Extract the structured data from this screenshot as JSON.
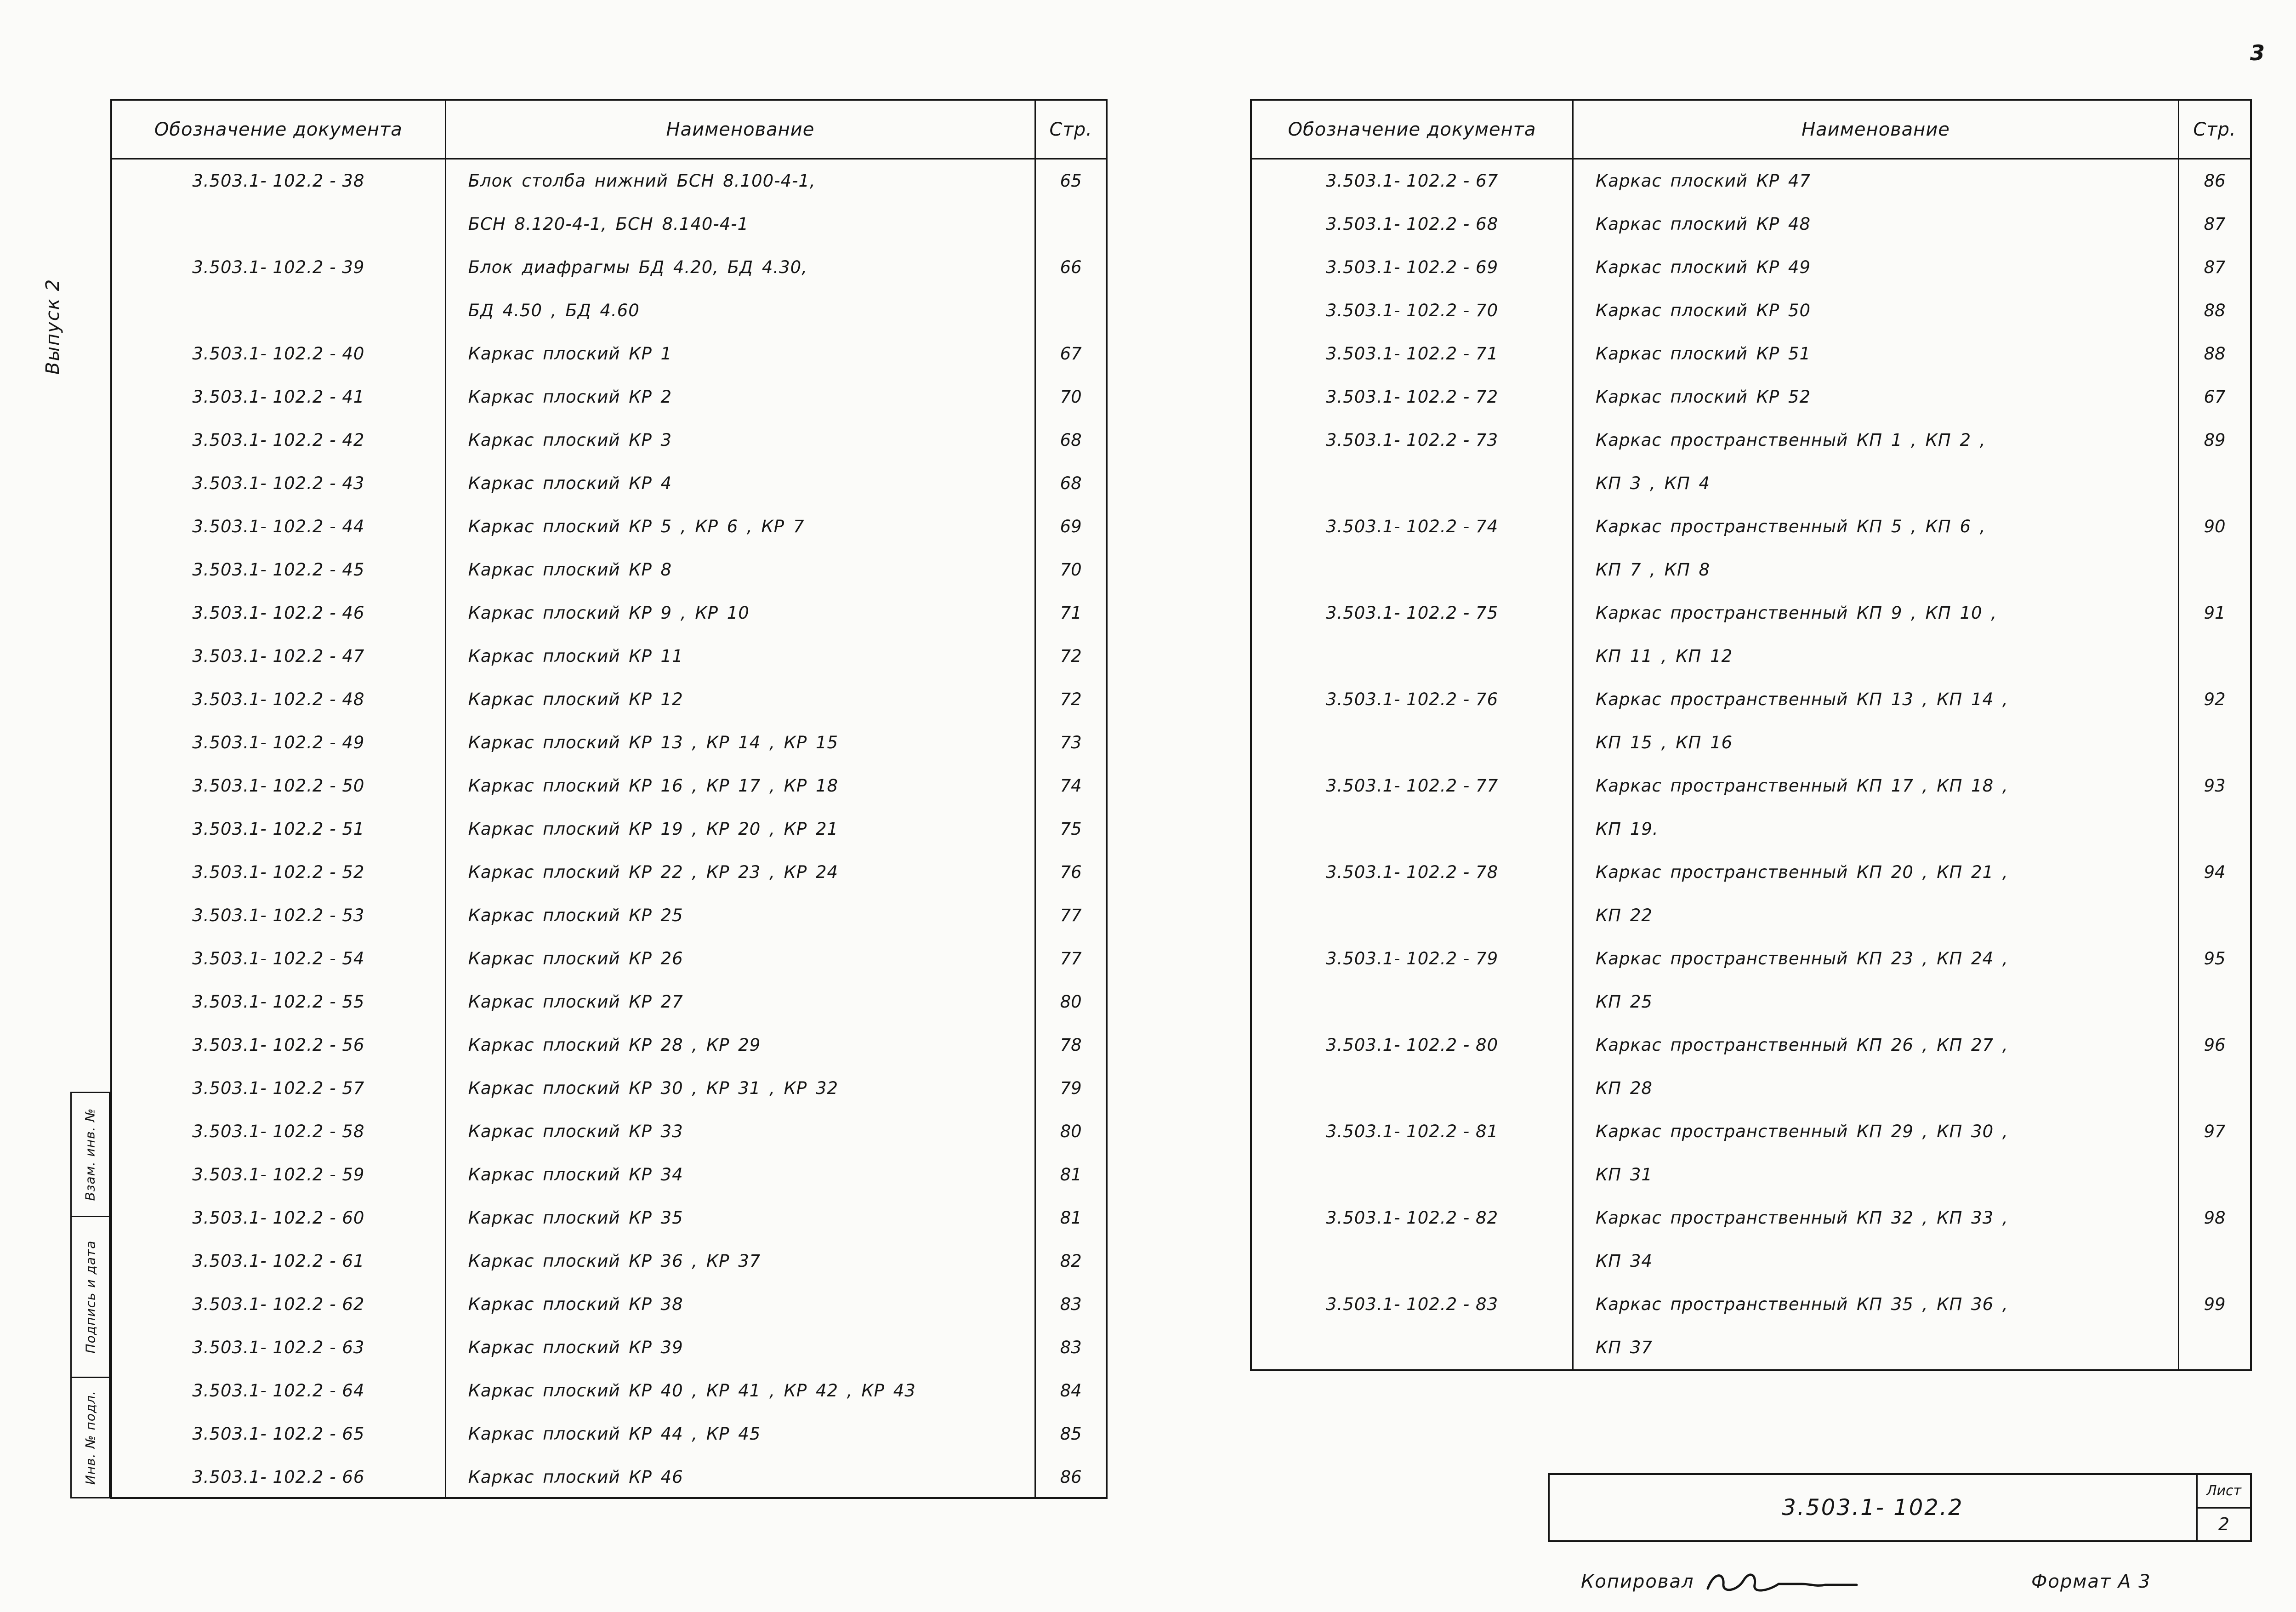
{
  "page": {
    "number": "3",
    "doc_code": "3.503.1- 102.2",
    "sheet_label": "Лист",
    "sheet_number": "2",
    "copied_label": "Копировал",
    "format_label": "Формат А 3"
  },
  "margin": {
    "issue": "Выпуск 2",
    "stamps": [
      "Взам. инв. №",
      "Подпись и дата",
      "Инв. № подл."
    ]
  },
  "tables": [
    {
      "headers": {
        "designation": "Обозначение документа",
        "name": "Наименование",
        "page": "Стр."
      },
      "rows": [
        {
          "designation": "3.503.1- 102.2 - 38",
          "name_lines": [
            "Блок  столба  нижний  БСН 8.100-4-1,",
            "БСН 8.120-4-1,   БСН 8.140-4-1"
          ],
          "page": "65"
        },
        {
          "designation": "3.503.1- 102.2 - 39",
          "name_lines": [
            "Блок  диафрагмы  БД 4.20,  БД 4.30,",
            "БД 4.50 ,  БД 4.60"
          ],
          "page": "66"
        },
        {
          "designation": "3.503.1- 102.2 - 40",
          "name_lines": [
            "Каркас   плоский   КР 1"
          ],
          "page": "67"
        },
        {
          "designation": "3.503.1- 102.2 - 41",
          "name_lines": [
            "Каркас  плоский   КР 2"
          ],
          "page": "70"
        },
        {
          "designation": "3.503.1- 102.2 - 42",
          "name_lines": [
            "Каркас   плоский   КР 3"
          ],
          "page": "68"
        },
        {
          "designation": "3.503.1- 102.2 - 43",
          "name_lines": [
            "Каркас   плоский   КР 4"
          ],
          "page": "68"
        },
        {
          "designation": "3.503.1- 102.2 - 44",
          "name_lines": [
            "Каркас  плоский  КР 5 ,  КР 6 ,  КР 7"
          ],
          "page": "69"
        },
        {
          "designation": "3.503.1- 102.2 - 45",
          "name_lines": [
            "Каркас  плоский  КР 8"
          ],
          "page": "70"
        },
        {
          "designation": "3.503.1- 102.2 - 46",
          "name_lines": [
            "Каркас   плоский  КР 9 ,  КР 10"
          ],
          "page": "71"
        },
        {
          "designation": "3.503.1- 102.2 - 47",
          "name_lines": [
            "Каркас  плоский  КР 11"
          ],
          "page": "72"
        },
        {
          "designation": "3.503.1- 102.2 - 48",
          "name_lines": [
            "Каркас  плоский  КР 12"
          ],
          "page": "72"
        },
        {
          "designation": "3.503.1- 102.2 - 49",
          "name_lines": [
            "Каркас  плоский  КР 13 ,  КР 14 ,  КР 15"
          ],
          "page": "73"
        },
        {
          "designation": "3.503.1- 102.2 - 50",
          "name_lines": [
            "Каркас  плоский  КР 16 ,  КР 17 ,  КР 18"
          ],
          "page": "74"
        },
        {
          "designation": "3.503.1- 102.2 - 51",
          "name_lines": [
            "Каркас плоский  КР 19 ,  КР 20 ,  КР 21"
          ],
          "page": "75"
        },
        {
          "designation": "3.503.1- 102.2 - 52",
          "name_lines": [
            "Каркас  плоский  КР 22 ,  КР 23 ,  КР 24"
          ],
          "page": "76"
        },
        {
          "designation": "3.503.1- 102.2 - 53",
          "name_lines": [
            "Каркас  плоский   КР 25"
          ],
          "page": "77"
        },
        {
          "designation": "3.503.1- 102.2 - 54",
          "name_lines": [
            "Каркас  плоский   КР 26"
          ],
          "page": "77"
        },
        {
          "designation": "3.503.1- 102.2 - 55",
          "name_lines": [
            "Каркас  плоский   КР 27"
          ],
          "page": "80"
        },
        {
          "designation": "3.503.1- 102.2 - 56",
          "name_lines": [
            "Каркас  плоский   КР 28 ,  КР 29"
          ],
          "page": "78"
        },
        {
          "designation": "3.503.1- 102.2 - 57",
          "name_lines": [
            "Каркас  плоский  КР 30 ,  КР 31 ,  КР 32"
          ],
          "page": "79"
        },
        {
          "designation": "3.503.1- 102.2 - 58",
          "name_lines": [
            "Каркас  плоский   КР 33"
          ],
          "page": "80"
        },
        {
          "designation": "3.503.1- 102.2 - 59",
          "name_lines": [
            "Каркас  плоский   КР 34"
          ],
          "page": "81"
        },
        {
          "designation": "3.503.1- 102.2 - 60",
          "name_lines": [
            "Каркас  плоский   КР 35"
          ],
          "page": "81"
        },
        {
          "designation": "3.503.1- 102.2 - 61",
          "name_lines": [
            "Каркас  плоский   КР 36 ,  КР 37"
          ],
          "page": "82"
        },
        {
          "designation": "3.503.1- 102.2 - 62",
          "name_lines": [
            "Каркас  плоский   КР 38"
          ],
          "page": "83"
        },
        {
          "designation": "3.503.1- 102.2 - 63",
          "name_lines": [
            "Каркас  плоский   КР 39"
          ],
          "page": "83"
        },
        {
          "designation": "3.503.1- 102.2 - 64",
          "name_lines": [
            "Каркас  плоский  КР 40 , КР 41 ,  КР 42 , КР 43"
          ],
          "page": "84"
        },
        {
          "designation": "3.503.1- 102.2 - 65",
          "name_lines": [
            "Каркас  плоский   КР 44 ,  КР 45"
          ],
          "page": "85"
        },
        {
          "designation": "3.503.1- 102.2 - 66",
          "name_lines": [
            "Каркас  плоский   КР 46"
          ],
          "page": "86"
        }
      ]
    },
    {
      "headers": {
        "designation": "Обозначение документа",
        "name": "Наименование",
        "page": "Стр."
      },
      "rows": [
        {
          "designation": "3.503.1- 102.2 - 67",
          "name_lines": [
            "Каркас   плоский   КР 47"
          ],
          "page": "86"
        },
        {
          "designation": "3.503.1- 102.2 - 68",
          "name_lines": [
            "Каркас   плоский   КР 48"
          ],
          "page": "87"
        },
        {
          "designation": "3.503.1- 102.2 - 69",
          "name_lines": [
            "Каркас   плоский   КР 49"
          ],
          "page": "87"
        },
        {
          "designation": "3.503.1- 102.2 - 70",
          "name_lines": [
            "Каркас   плоский   КР 50"
          ],
          "page": "88"
        },
        {
          "designation": "3.503.1- 102.2 - 71",
          "name_lines": [
            "Каркас   плоский   КР 51"
          ],
          "page": "88"
        },
        {
          "designation": "3.503.1- 102.2 - 72",
          "name_lines": [
            "Каркас   плоский   КР 52"
          ],
          "page": "67"
        },
        {
          "designation": "3.503.1- 102.2 - 73",
          "name_lines": [
            "Каркас  пространственный  КП 1 ,  КП 2 ,",
            "КП 3 ,   КП 4"
          ],
          "page": "89"
        },
        {
          "designation": "3.503.1- 102.2 - 74",
          "name_lines": [
            "Каркас  пространственный  КП 5 ,  КП 6 ,",
            "КП 7 ,   КП 8"
          ],
          "page": "90"
        },
        {
          "designation": "3.503.1- 102.2 - 75",
          "name_lines": [
            "Каркас  пространственный  КП 9 ,  КП 10 ,",
            "КП 11 ,   КП 12"
          ],
          "page": "91"
        },
        {
          "designation": "3.503.1- 102.2 - 76",
          "name_lines": [
            "Каркас  пространственный  КП 13 ,  КП 14 ,",
            "КП 15 ,   КП 16"
          ],
          "page": "92"
        },
        {
          "designation": "3.503.1- 102.2 - 77",
          "name_lines": [
            "Каркас  пространственный  КП 17 ,  КП 18 ,",
            "КП 19."
          ],
          "page": "93"
        },
        {
          "designation": "3.503.1- 102.2 - 78",
          "name_lines": [
            "Каркас   пространственный  КП 20 ,  КП 21 ,",
            "КП 22"
          ],
          "page": "94"
        },
        {
          "designation": "3.503.1- 102.2 - 79",
          "name_lines": [
            "Каркас   пространственный  КП 23 ,  КП 24 ,",
            "КП 25"
          ],
          "page": "95"
        },
        {
          "designation": "3.503.1- 102.2 - 80",
          "name_lines": [
            "Каркас   пространственный  КП 26 ,  КП 27 ,",
            "КП 28"
          ],
          "page": "96"
        },
        {
          "designation": "3.503.1- 102.2 - 81",
          "name_lines": [
            "Каркас   пространственный  КП 29 ,  КП 30 ,",
            "КП 31"
          ],
          "page": "97"
        },
        {
          "designation": "3.503.1- 102.2 - 82",
          "name_lines": [
            "Каркас  пространственный  КП 32 ,  КП 33 ,",
            "КП 34"
          ],
          "page": "98"
        },
        {
          "designation": "3.503.1- 102.2 - 83",
          "name_lines": [
            "Каркас  пространственный  КП 35 ,  КП 36 ,",
            "КП 37"
          ],
          "page": "99"
        }
      ]
    }
  ]
}
